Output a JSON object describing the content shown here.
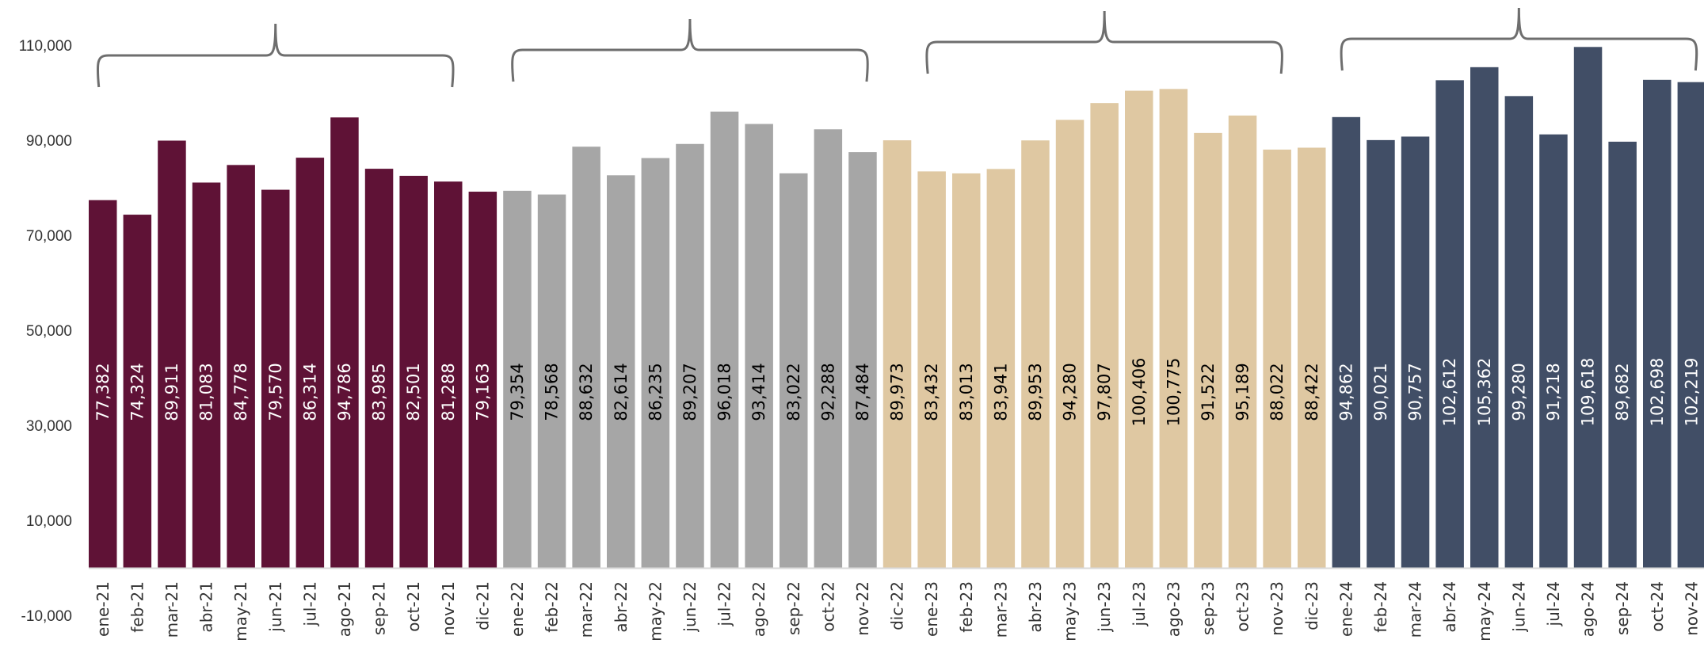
{
  "chart_data": {
    "type": "bar",
    "title": "",
    "xlabel": "",
    "ylabel": "",
    "ylim": [
      -10000,
      110000
    ],
    "yticks": [
      110000,
      90000,
      70000,
      50000,
      30000,
      10000,
      -10000
    ],
    "ytick_labels": [
      "110,000",
      "90,000",
      "70,000",
      "50,000",
      "30,000",
      "10,000",
      "-10,000"
    ],
    "grid": false,
    "legend": "none",
    "categories": [
      "ene-21",
      "feb-21",
      "mar-21",
      "abr-21",
      "may-21",
      "jun-21",
      "jul-21",
      "ago-21",
      "sep-21",
      "oct-21",
      "nov-21",
      "dic-21",
      "ene-22",
      "feb-22",
      "mar-22",
      "abr-22",
      "may-22",
      "jun-22",
      "jul-22",
      "ago-22",
      "sep-22",
      "oct-22",
      "nov-22",
      "dic-22",
      "ene-23",
      "feb-23",
      "mar-23",
      "abr-23",
      "may-23",
      "jun-23",
      "jul-23",
      "ago-23",
      "sep-23",
      "oct-23",
      "nov-23",
      "dic-23",
      "ene-24",
      "feb-24",
      "mar-24",
      "abr-24",
      "may-24",
      "jun-24",
      "jul-24",
      "ago-24",
      "sep-24",
      "oct-24",
      "nov-24"
    ],
    "values": [
      77382,
      74324,
      89911,
      81083,
      84778,
      79570,
      86314,
      94786,
      83985,
      82501,
      81288,
      79163,
      79354,
      78568,
      88632,
      82614,
      86235,
      89207,
      96018,
      93414,
      83022,
      92288,
      87484,
      89973,
      83432,
      83013,
      83941,
      89953,
      94280,
      97807,
      100406,
      100775,
      91522,
      95189,
      88022,
      88422,
      94862,
      90021,
      90757,
      102612,
      105362,
      99280,
      91218,
      109618,
      89682,
      102698,
      102219
    ],
    "data_labels": [
      "77,382",
      "74,324",
      "89,911",
      "81,083",
      "84,778",
      "79,570",
      "86,314",
      "94,786",
      "83,985",
      "82,501",
      "81,288",
      "79,163",
      "79,354",
      "78,568",
      "88,632",
      "82,614",
      "86,235",
      "89,207",
      "96,018",
      "93,414",
      "83,022",
      "92,288",
      "87,484",
      "89,973",
      "83,432",
      "83,013",
      "83,941",
      "89,953",
      "94,280",
      "97,807",
      "100,406",
      "100,775",
      "91,522",
      "95,189",
      "88,022",
      "88,422",
      "94,862",
      "90,021",
      "90,757",
      "102,612",
      "105,362",
      "99,280",
      "91,218",
      "109,618",
      "89,682",
      "102,698",
      "102,219"
    ],
    "color_groups": [
      {
        "start": 0,
        "end": 11,
        "color": "#5f1236",
        "label_color": "#ffffff"
      },
      {
        "start": 12,
        "end": 22,
        "color": "#a6a6a6",
        "label_color": "#000000"
      },
      {
        "start": 23,
        "end": 35,
        "color": "#dfc8a2",
        "label_color": "#000000"
      },
      {
        "start": 36,
        "end": 46,
        "color": "#414e66",
        "label_color": "#ffffff"
      }
    ],
    "braces": [
      {
        "from": 0,
        "to": 10
      },
      {
        "from": 12,
        "to": 22
      },
      {
        "from": 24,
        "to": 34
      },
      {
        "from": 36,
        "to": 46
      }
    ]
  }
}
